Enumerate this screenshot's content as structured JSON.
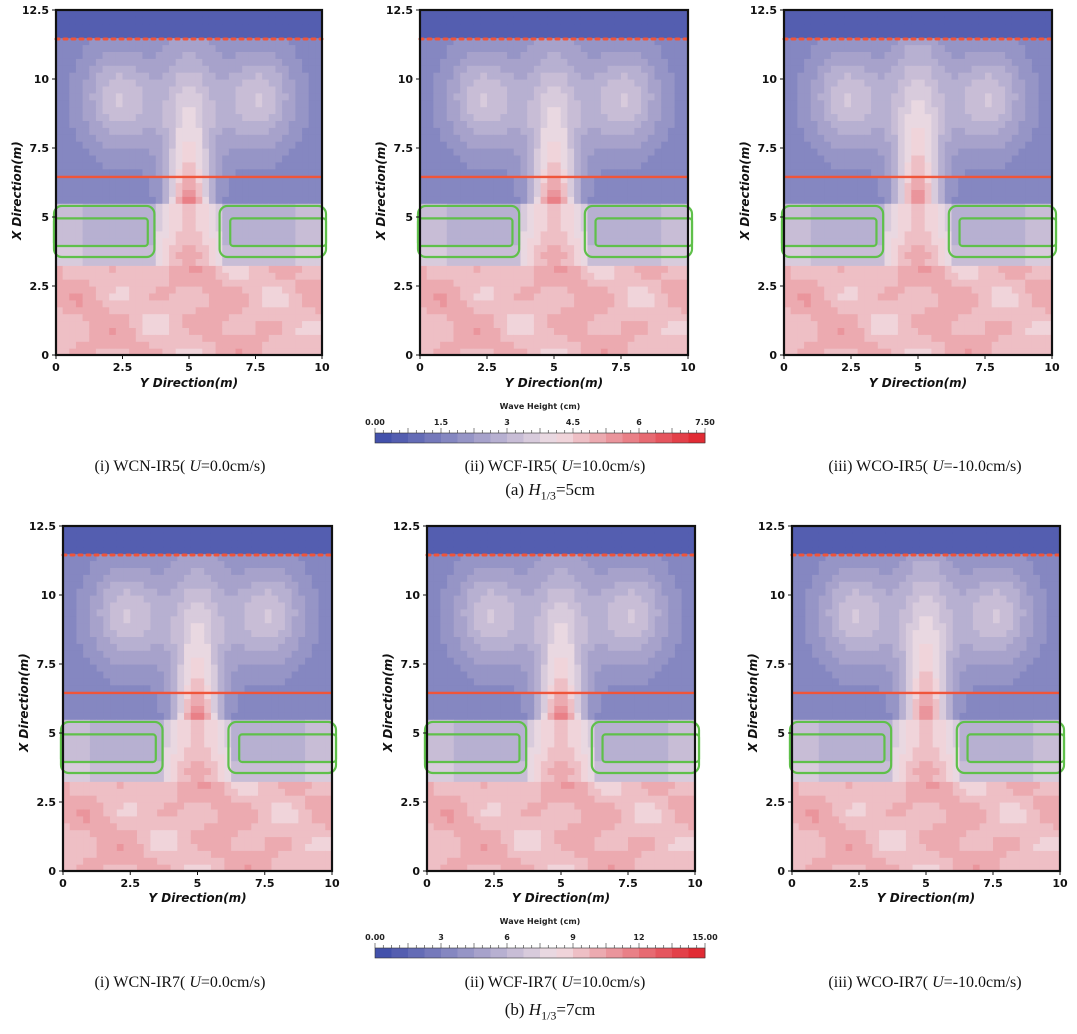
{
  "chart_data": [
    {
      "type": "heatmap",
      "case": "WCN-IR5",
      "current_U": "0.0cm/s",
      "xlabel": "Y Direction(m)",
      "ylabel": "X Direction(m)",
      "xlim": [
        0,
        10
      ],
      "ylim": [
        0,
        12.5
      ],
      "x_ticks": [
        "0",
        "2.5",
        "5",
        "7.5",
        "10"
      ],
      "y_ticks": [
        "0",
        "2.5",
        "5",
        "7.5",
        "10",
        "12.5"
      ],
      "caption_prefix": "(i)  WCN-IR5( ",
      "caption_var": "U",
      "caption_suffix": "=0.0cm/s)"
    },
    {
      "type": "heatmap",
      "case": "WCF-IR5",
      "current_U": "10.0cm/s",
      "xlabel": "Y Direction(m)",
      "ylabel": "X Direction(m)",
      "xlim": [
        0,
        10
      ],
      "ylim": [
        0,
        12.5
      ],
      "x_ticks": [
        "0",
        "2.5",
        "5",
        "7.5",
        "10"
      ],
      "y_ticks": [
        "0",
        "2.5",
        "5",
        "7.5",
        "10",
        "12.5"
      ],
      "caption_prefix": "(ii)  WCF-IR5( ",
      "caption_var": "U",
      "caption_suffix": "=10.0cm/s)"
    },
    {
      "type": "heatmap",
      "case": "WCO-IR5",
      "current_U": "-10.0cm/s",
      "xlabel": "Y Direction(m)",
      "ylabel": "X Direction(m)",
      "xlim": [
        0,
        10
      ],
      "ylim": [
        0,
        12.5
      ],
      "x_ticks": [
        "0",
        "2.5",
        "5",
        "7.5",
        "10"
      ],
      "y_ticks": [
        "0",
        "2.5",
        "5",
        "7.5",
        "10",
        "12.5"
      ],
      "caption_prefix": "(iii)  WCO-IR5( ",
      "caption_var": "U",
      "caption_suffix": "=-10.0cm/s)"
    },
    {
      "type": "heatmap",
      "case": "WCN-IR7",
      "current_U": "0.0cm/s",
      "xlabel": "Y Direction(m)",
      "ylabel": "X Direction(m)",
      "xlim": [
        0,
        10
      ],
      "ylim": [
        0,
        12.5
      ],
      "x_ticks": [
        "0",
        "2.5",
        "5",
        "7.5",
        "10"
      ],
      "y_ticks": [
        "0",
        "2.5",
        "5",
        "7.5",
        "10",
        "12.5"
      ],
      "caption_prefix": "(i)  WCN-IR7( ",
      "caption_var": "U",
      "caption_suffix": "=0.0cm/s)"
    },
    {
      "type": "heatmap",
      "case": "WCF-IR7",
      "current_U": "10.0cm/s",
      "xlabel": "Y Direction(m)",
      "ylabel": "X Direction(m)",
      "xlim": [
        0,
        10
      ],
      "ylim": [
        0,
        12.5
      ],
      "x_ticks": [
        "0",
        "2.5",
        "5",
        "7.5",
        "10"
      ],
      "y_ticks": [
        "0",
        "2.5",
        "5",
        "7.5",
        "10",
        "12.5"
      ],
      "caption_prefix": "(ii)  WCF-IR7( ",
      "caption_var": "U",
      "caption_suffix": "=10.0cm/s)"
    },
    {
      "type": "heatmap",
      "case": "WCO-IR7",
      "current_U": "-10.0cm/s",
      "xlabel": "Y Direction(m)",
      "ylabel": "X Direction(m)",
      "xlim": [
        0,
        10
      ],
      "ylim": [
        0,
        12.5
      ],
      "x_ticks": [
        "0",
        "2.5",
        "5",
        "7.5",
        "10"
      ],
      "y_ticks": [
        "0",
        "2.5",
        "5",
        "7.5",
        "10",
        "12.5"
      ],
      "caption_prefix": "(iii)  WCO-IR7( ",
      "caption_var": "U",
      "caption_suffix": "=-10.0cm/s)"
    }
  ],
  "colorbars": [
    {
      "title": "Wave Height (cm)",
      "min": 0,
      "max": 7.5,
      "tick_labels": [
        "0.00",
        "1.5",
        "3",
        "4.5",
        "6",
        "7.50"
      ]
    },
    {
      "title": "Wave Height (cm)",
      "min": 0,
      "max": 15,
      "tick_labels": [
        "0.00",
        "3",
        "6",
        "9",
        "12",
        "15.00"
      ]
    }
  ],
  "row_captions": [
    {
      "prefix": "(a)  ",
      "var": "H",
      "sub": "1/3",
      "suffix": "=5cm"
    },
    {
      "prefix": "(b)  ",
      "var": "H",
      "sub": "1/3",
      "suffix": "=7cm"
    }
  ],
  "colors": {
    "low": "#3b4aa8",
    "mid": "#f1dfe4",
    "high": "#e0202a",
    "breakwater_outline": "#5fc04a",
    "boundary_line": "#f0553a",
    "frame": "#111111"
  }
}
